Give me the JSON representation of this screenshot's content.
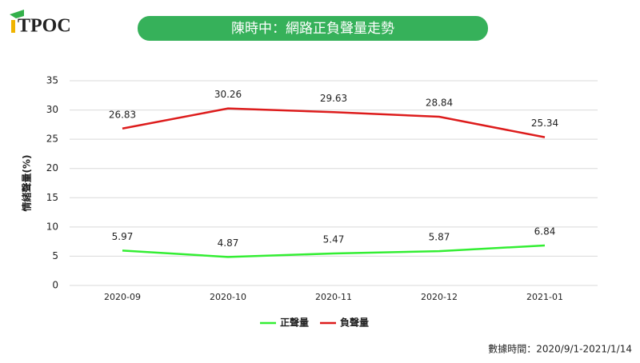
{
  "logo": "TPOC",
  "chart_data": {
    "type": "line",
    "title": "陳時中：網路正負聲量走勢",
    "y_label": "情緒聲量(%)",
    "source": "數據時間：2020/9/1-2021/1/14",
    "categories": [
      "2020-09",
      "2020-10",
      "2020-11",
      "2020-12",
      "2021-01"
    ],
    "series": [
      {
        "name": "正聲量",
        "color": "#33ee33",
        "values": [
          5.97,
          4.87,
          5.47,
          5.87,
          6.84
        ]
      },
      {
        "name": "負聲量",
        "color": "#dd1c1c",
        "values": [
          26.83,
          30.26,
          29.63,
          28.84,
          25.34
        ]
      }
    ],
    "ylim": [
      0,
      35
    ],
    "yticks": [
      0,
      5,
      10,
      15,
      20,
      25,
      30,
      35
    ],
    "grid": true,
    "legend": "bottom"
  }
}
